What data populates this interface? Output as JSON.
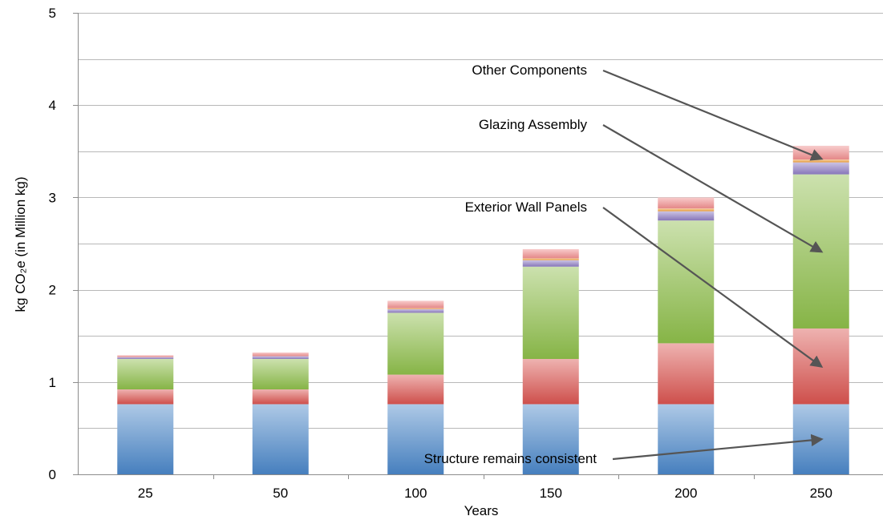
{
  "chart_data": {
    "type": "bar",
    "stacked": true,
    "categories": [
      "25",
      "50",
      "100",
      "150",
      "200",
      "250"
    ],
    "xlabel": "Years",
    "ylabel": "kg CO₂e (in Million kg)",
    "ylim": [
      0,
      5
    ],
    "yticks": [
      0,
      1,
      2,
      3,
      4,
      5
    ],
    "grid": true,
    "series": [
      {
        "name": "Structure remains consistent",
        "color": "#4a86c8",
        "values": [
          0.76,
          0.76,
          0.76,
          0.76,
          0.76,
          0.76
        ]
      },
      {
        "name": "Exterior Wall Panels",
        "color": "#d9534f",
        "values": [
          0.16,
          0.16,
          0.32,
          0.49,
          0.66,
          0.82
        ]
      },
      {
        "name": "Glazing Assembly",
        "color": "#8dbd4a",
        "values": [
          0.33,
          0.33,
          0.67,
          1.0,
          1.33,
          1.67
        ]
      },
      {
        "color": "#8e7cc3",
        "values": [
          0.02,
          0.03,
          0.04,
          0.07,
          0.1,
          0.13
        ]
      },
      {
        "color": "#f0a03c",
        "values": [
          0.0,
          0.0,
          0.01,
          0.02,
          0.03,
          0.03
        ]
      },
      {
        "name": "Other Components",
        "color": "#f08e8e",
        "values": [
          0.02,
          0.04,
          0.08,
          0.1,
          0.12,
          0.15
        ]
      }
    ],
    "annotations": [
      {
        "text": "Other Components"
      },
      {
        "text": "Glazing Assembly"
      },
      {
        "text": "Exterior Wall Panels"
      },
      {
        "text": "Structure remains consistent"
      }
    ]
  }
}
